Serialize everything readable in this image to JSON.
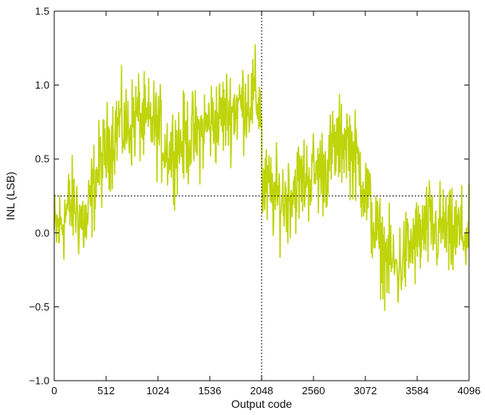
{
  "chart_data": {
    "type": "line",
    "xlabel": "Output code",
    "ylabel": "INL (LSB)",
    "xlim": [
      0,
      4096
    ],
    "ylim": [
      -1.0,
      1.5
    ],
    "grid": false,
    "x_ticks": [
      0,
      512,
      1024,
      1536,
      2048,
      2560,
      3072,
      3584,
      4096
    ],
    "x_tick_labels": [
      "0",
      "512",
      "1024",
      "1536",
      "2048",
      "2560",
      "3072",
      "3584",
      "4096"
    ],
    "y_ticks": [
      -1.0,
      -0.5,
      0.0,
      0.5,
      1.0,
      1.5
    ],
    "y_tick_labels": [
      "−1.0",
      "−0.5",
      "0.0",
      "0.5",
      "1.0",
      "1.5"
    ],
    "series_color": "#bfd40a",
    "reference_lines": [
      {
        "orientation": "horizontal",
        "value": 0.25,
        "style": "dotted"
      },
      {
        "orientation": "vertical",
        "value": 2048,
        "style": "dotted"
      }
    ],
    "series": [
      {
        "x": [
          0,
          64,
          128,
          192,
          256,
          320,
          384,
          448,
          512,
          576,
          640,
          704,
          768,
          832,
          896,
          960,
          1024,
          1088,
          1152,
          1216,
          1280,
          1344,
          1408,
          1472,
          1536,
          1600,
          1664,
          1728,
          1792,
          1856,
          1920,
          1984,
          2047,
          2049,
          2112,
          2176,
          2240,
          2304,
          2368,
          2432,
          2496,
          2560,
          2624,
          2688,
          2752,
          2816,
          2880,
          2944,
          3008,
          3072,
          3136,
          3200,
          3264,
          3328,
          3392,
          3456,
          3520,
          3584,
          3648,
          3712,
          3776,
          3840,
          3904,
          3968,
          4032,
          4096
        ],
        "y": [
          0.0,
          0.05,
          0.15,
          0.2,
          0.1,
          0.05,
          0.3,
          0.45,
          0.55,
          0.65,
          0.75,
          0.7,
          0.75,
          0.8,
          0.72,
          0.75,
          0.7,
          0.6,
          0.55,
          0.6,
          0.62,
          0.65,
          0.65,
          0.7,
          0.75,
          0.75,
          0.8,
          0.82,
          0.85,
          0.88,
          0.9,
          0.92,
          0.85,
          0.3,
          0.28,
          0.25,
          0.22,
          0.25,
          0.3,
          0.35,
          0.38,
          0.4,
          0.42,
          0.45,
          0.55,
          0.6,
          0.65,
          0.55,
          0.45,
          0.3,
          0.1,
          -0.05,
          -0.15,
          -0.2,
          -0.25,
          -0.15,
          -0.1,
          -0.05,
          0.0,
          0.05,
          0.0,
          0.05,
          -0.05,
          0.0,
          0.0,
          -0.05
        ],
        "noise_amplitude": 0.25
      }
    ]
  }
}
